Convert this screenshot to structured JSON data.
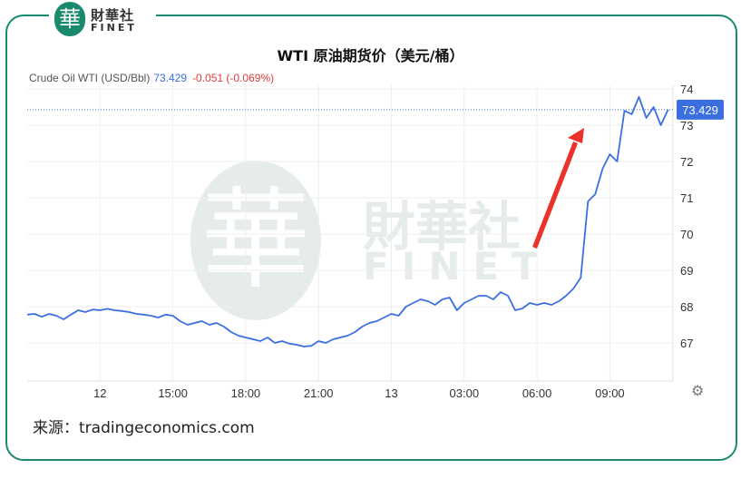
{
  "header": {
    "logo_mark": "華",
    "logo_cn": "財華社",
    "logo_en": "FINET"
  },
  "watermark": {
    "mark": "華",
    "cn": "財華社",
    "en": "FINET"
  },
  "title": "WTI 原油期货价（美元/桶）",
  "legend": {
    "instrument": "Crude Oil WTI (USD/Bbl)",
    "price": "73.429",
    "change": "-0.051 (-0.069%)"
  },
  "source": "来源：tradingeconomics.com",
  "colors": {
    "line": "#3b6fe0",
    "arrow": "#e8322a",
    "frame": "#1a8a6e",
    "change": "#e03b3b"
  },
  "chart_data": {
    "type": "line",
    "title": "WTI 原油期货价（美元/桶）",
    "xlabel": "",
    "ylabel": "",
    "x_ticks": [
      "12",
      "15:00",
      "18:00",
      "21:00",
      "13",
      "03:00",
      "06:00",
      "09:00"
    ],
    "y_ticks": [
      67,
      68,
      69,
      70,
      71,
      72,
      73,
      74
    ],
    "ylim": [
      66,
      74.5
    ],
    "grid": true,
    "last_value": 73.429,
    "last_label": "73.429",
    "annotation": "red upward arrow indicating sharp price rise",
    "series": [
      {
        "x_hours": [
          9.0,
          9.3,
          9.6,
          9.9,
          10.2,
          10.5,
          10.8,
          11.1,
          11.4,
          11.7,
          12.0,
          12.3,
          12.6,
          12.9,
          13.2,
          13.5,
          13.8,
          14.1,
          14.4,
          14.7,
          15.0,
          15.3,
          15.6,
          15.9,
          16.2,
          16.5,
          16.8,
          17.1,
          17.4,
          17.7,
          18.0,
          18.3,
          18.6,
          18.9,
          19.2,
          19.5,
          19.8,
          20.1,
          20.4,
          20.7,
          21.0,
          21.3,
          21.6,
          21.9,
          22.2,
          22.5,
          22.8,
          23.1,
          23.4,
          23.7,
          24.0,
          24.3,
          24.6,
          24.9,
          25.2,
          25.5,
          25.8,
          26.1,
          26.4,
          26.7,
          27.0,
          27.3,
          27.6,
          27.9,
          28.2,
          28.5,
          28.8,
          29.1,
          29.4,
          29.7,
          30.0,
          30.3,
          30.6,
          30.9,
          31.2,
          31.5,
          31.8,
          32.1,
          32.4,
          32.7,
          33.0,
          33.3,
          33.6,
          33.9,
          34.2,
          34.5,
          34.8,
          35.1,
          35.4
        ],
        "values": [
          67.78,
          67.8,
          67.72,
          67.8,
          67.75,
          67.65,
          67.78,
          67.9,
          67.85,
          67.92,
          67.9,
          67.94,
          67.9,
          67.88,
          67.85,
          67.8,
          67.78,
          67.75,
          67.7,
          67.78,
          67.75,
          67.6,
          67.5,
          67.55,
          67.6,
          67.5,
          67.55,
          67.45,
          67.3,
          67.2,
          67.15,
          67.1,
          67.05,
          67.15,
          67.0,
          67.05,
          66.98,
          66.95,
          66.9,
          66.92,
          67.05,
          67.0,
          67.1,
          67.15,
          67.2,
          67.3,
          67.45,
          67.55,
          67.6,
          67.7,
          67.8,
          67.75,
          68.0,
          68.1,
          68.2,
          68.15,
          68.05,
          68.2,
          68.25,
          67.9,
          68.1,
          68.2,
          68.3,
          68.3,
          68.2,
          68.4,
          68.3,
          67.9,
          67.95,
          68.1,
          68.05,
          68.1,
          68.05,
          68.15,
          68.3,
          68.5,
          68.8,
          70.9,
          71.1,
          71.8,
          72.2,
          72.0,
          73.4,
          73.3,
          73.78,
          73.2,
          73.5,
          73.0,
          73.429
        ]
      }
    ]
  }
}
